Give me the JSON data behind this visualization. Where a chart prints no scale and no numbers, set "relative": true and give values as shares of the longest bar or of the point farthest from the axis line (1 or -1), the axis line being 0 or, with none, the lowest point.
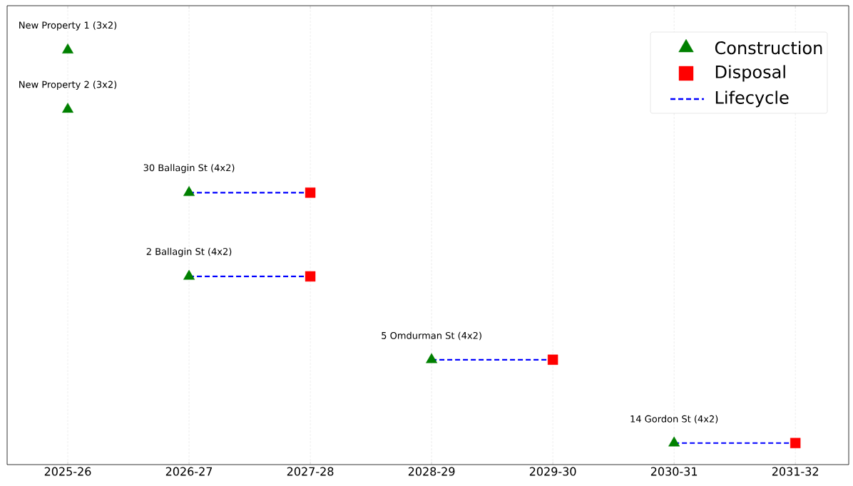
{
  "chart_data": {
    "type": "scatter",
    "relative": true,
    "categories": [
      "2025-26",
      "2026-27",
      "2027-28",
      "2028-29",
      "2029-30",
      "2030-31",
      "2031-32"
    ],
    "series": [
      {
        "name": "Construction",
        "type": "scatter",
        "marker": "triangle",
        "color": "#008000",
        "x": [
          "2025-26",
          "2025-26",
          "2026-27",
          "2026-27",
          "2028-29",
          "2030-31"
        ],
        "values": [
          1,
          0.857,
          0.656,
          0.454,
          0.253,
          0.052
        ]
      },
      {
        "name": "Disposal",
        "type": "scatter",
        "marker": "square",
        "color": "#ff0000",
        "x": [
          "2027-28",
          "2027-28",
          "2029-30",
          "2031-32"
        ],
        "values": [
          0.656,
          0.454,
          0.253,
          0.052
        ]
      },
      {
        "name": "Lifecycle",
        "type": "line",
        "line_style": "dashed",
        "marker": "none",
        "color": "#0000ff",
        "x": [
          "2026-27",
          "2027-28"
        ],
        "values": [
          0.656,
          0.656
        ]
      },
      {
        "type": "line",
        "line_style": "dashed",
        "marker": "none",
        "color": "#0000ff",
        "x": [
          "2026-27",
          "2027-28"
        ],
        "values": [
          0.454,
          0.454
        ]
      },
      {
        "type": "line",
        "line_style": "dashed",
        "marker": "none",
        "color": "#0000ff",
        "x": [
          "2028-29",
          "2029-30"
        ],
        "values": [
          0.253,
          0.253
        ]
      },
      {
        "type": "line",
        "line_style": "dashed",
        "marker": "none",
        "color": "#0000ff",
        "x": [
          "2030-31",
          "2031-32"
        ],
        "values": [
          0.052,
          0.052
        ]
      }
    ],
    "annotations": [
      {
        "text": "New Property 1 (3x2)",
        "x": "2025-26",
        "y": 1
      },
      {
        "text": "New Property 2 (3x2)",
        "x": "2025-26",
        "y": 0.857
      },
      {
        "text": "30 Ballagin St (4x2)",
        "x": "2026-27",
        "y": 0.656
      },
      {
        "text": "2 Ballagin St (4x2)",
        "x": "2026-27",
        "y": 0.454
      },
      {
        "text": "5 Omdurman St (4x2)",
        "x": "2028-29",
        "y": 0.253
      },
      {
        "text": "14 Gordon St (4x2)",
        "x": "2030-31",
        "y": 0.052
      }
    ],
    "grid": "x",
    "legend": "top right",
    "tick_labels": "x"
  }
}
